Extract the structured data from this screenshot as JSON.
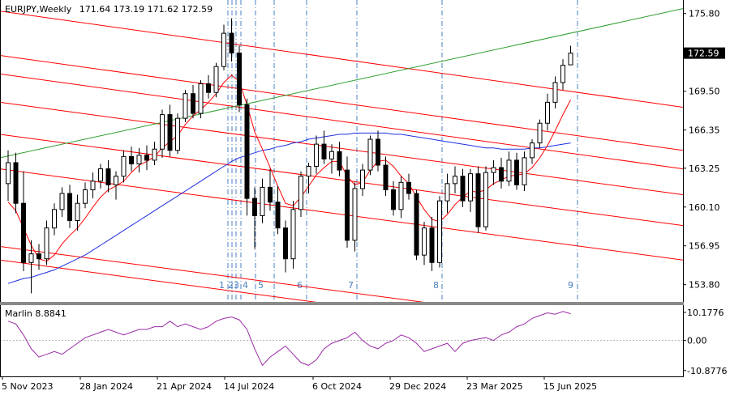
{
  "chart_data": {
    "type": "candlestick",
    "symbol_label": "EURJPY,Weekly",
    "ohlc_header": "171.64 173.19 171.62 172.59",
    "current_price": 172.59,
    "current_price_label": "172.59",
    "price_axis": {
      "range": [
        152.4,
        176.9
      ],
      "ticks": [
        175.8,
        172.65,
        169.5,
        166.35,
        163.25,
        160.1,
        156.95,
        153.8
      ],
      "tick_labels": [
        "175.80",
        "172.65",
        "169.50",
        "166.35",
        "163.25",
        "160.10",
        "156.95",
        "153.80"
      ]
    },
    "time_labels": [
      "5 Nov 2023",
      "28 Jan 2024",
      "21 Apr 2024",
      "14 Jul 2024",
      "6 Oct 2024",
      "29 Dec 2024",
      "23 Mar 2025",
      "15 Jun 2025"
    ],
    "wave_marks": [
      "1",
      "2",
      "3",
      "4",
      "5",
      "6",
      "7",
      "8",
      "9"
    ],
    "colors": {
      "bull": "#ffffff",
      "bear": "#000000",
      "channel": "#ff0000",
      "trendline": "#2e9e2e",
      "ma_fast": "#ff0000",
      "ma_slow": "#1f2fe0",
      "oscillator": "#9b2aa6",
      "cycle_lines": "#4a7fc0"
    },
    "candles": [
      [
        162.0,
        164.7,
        160.6,
        163.7
      ],
      [
        163.7,
        164.5,
        159.6,
        160.4
      ],
      [
        160.4,
        163.0,
        154.9,
        155.6
      ],
      [
        155.6,
        157.4,
        153.1,
        156.3
      ],
      [
        156.3,
        157.1,
        155.0,
        155.9
      ],
      [
        155.9,
        159.0,
        155.4,
        158.4
      ],
      [
        158.4,
        160.4,
        157.8,
        159.9
      ],
      [
        159.9,
        161.7,
        159.3,
        161.2
      ],
      [
        161.2,
        161.9,
        158.4,
        159.0
      ],
      [
        159.0,
        161.1,
        158.2,
        160.4
      ],
      [
        160.4,
        162.1,
        160.0,
        161.5
      ],
      [
        161.5,
        162.9,
        160.8,
        162.2
      ],
      [
        162.2,
        163.6,
        161.6,
        163.2
      ],
      [
        163.2,
        163.9,
        161.3,
        161.9
      ],
      [
        161.9,
        163.0,
        160.7,
        162.6
      ],
      [
        162.6,
        164.7,
        162.1,
        164.2
      ],
      [
        164.2,
        165.0,
        163.0,
        163.6
      ],
      [
        163.6,
        164.9,
        162.9,
        164.3
      ],
      [
        164.3,
        165.1,
        163.1,
        163.9
      ],
      [
        163.9,
        165.4,
        163.5,
        164.8
      ],
      [
        164.8,
        168.0,
        164.1,
        167.6
      ],
      [
        167.6,
        168.4,
        164.2,
        164.7
      ],
      [
        164.7,
        167.7,
        164.4,
        167.3
      ],
      [
        167.3,
        169.6,
        167.0,
        169.3
      ],
      [
        169.3,
        170.0,
        167.3,
        167.7
      ],
      [
        167.7,
        170.4,
        167.3,
        170.1
      ],
      [
        170.1,
        170.8,
        168.9,
        169.4
      ],
      [
        169.4,
        171.8,
        169.0,
        171.5
      ],
      [
        171.5,
        174.9,
        171.2,
        174.2
      ],
      [
        174.2,
        175.4,
        171.9,
        172.6
      ],
      [
        172.6,
        173.2,
        167.8,
        168.4
      ],
      [
        168.4,
        168.9,
        159.4,
        160.8
      ],
      [
        160.8,
        161.7,
        156.7,
        159.4
      ],
      [
        159.4,
        162.4,
        158.8,
        161.7
      ],
      [
        161.7,
        163.2,
        159.8,
        160.5
      ],
      [
        160.5,
        161.8,
        157.9,
        158.4
      ],
      [
        158.4,
        159.0,
        154.8,
        155.9
      ],
      [
        155.9,
        160.6,
        155.1,
        159.9
      ],
      [
        159.9,
        163.0,
        159.3,
        162.6
      ],
      [
        162.6,
        163.7,
        161.2,
        163.4
      ],
      [
        163.4,
        165.9,
        162.8,
        165.2
      ],
      [
        165.2,
        166.3,
        163.6,
        164.0
      ],
      [
        164.0,
        165.2,
        162.8,
        164.6
      ],
      [
        164.6,
        165.4,
        162.6,
        163.1
      ],
      [
        163.1,
        164.2,
        156.8,
        157.4
      ],
      [
        157.4,
        162.1,
        156.5,
        161.6
      ],
      [
        161.6,
        163.6,
        161.0,
        163.1
      ],
      [
        163.1,
        165.9,
        162.7,
        165.6
      ],
      [
        165.6,
        166.3,
        163.0,
        163.5
      ],
      [
        163.5,
        164.2,
        161.0,
        161.5
      ],
      [
        161.5,
        162.2,
        159.4,
        159.9
      ],
      [
        159.9,
        162.6,
        159.2,
        162.1
      ],
      [
        162.1,
        162.8,
        160.7,
        161.2
      ],
      [
        161.2,
        161.5,
        155.8,
        156.2
      ],
      [
        156.2,
        158.9,
        155.4,
        158.4
      ],
      [
        158.4,
        159.3,
        154.9,
        155.6
      ],
      [
        155.6,
        161.0,
        155.2,
        160.6
      ],
      [
        160.6,
        162.8,
        159.6,
        162.0
      ],
      [
        162.0,
        163.4,
        161.2,
        162.6
      ],
      [
        162.6,
        163.2,
        160.1,
        160.6
      ],
      [
        160.6,
        163.2,
        159.7,
        162.8
      ],
      [
        162.8,
        163.4,
        158.0,
        158.5
      ],
      [
        158.5,
        163.4,
        158.2,
        162.9
      ],
      [
        162.9,
        163.9,
        161.9,
        163.3
      ],
      [
        163.3,
        164.1,
        161.6,
        162.2
      ],
      [
        162.2,
        164.6,
        161.8,
        163.9
      ],
      [
        163.9,
        164.5,
        161.5,
        161.9
      ],
      [
        161.9,
        164.6,
        161.4,
        164.1
      ],
      [
        164.1,
        165.6,
        163.6,
        165.3
      ],
      [
        165.3,
        167.2,
        164.9,
        166.9
      ],
      [
        166.9,
        169.3,
        166.3,
        168.6
      ],
      [
        168.6,
        170.7,
        168.1,
        170.2
      ],
      [
        170.2,
        172.1,
        169.6,
        171.6
      ],
      [
        171.64,
        173.19,
        171.62,
        172.59
      ]
    ],
    "fast_ma": [
      160.5,
      159.8,
      158.4,
      157.0,
      155.9,
      155.7,
      156.2,
      157.1,
      157.8,
      158.4,
      159.2,
      160.1,
      160.9,
      161.5,
      161.8,
      162.2,
      162.9,
      163.5,
      163.8,
      164.2,
      164.9,
      165.4,
      165.9,
      166.8,
      167.5,
      168.0,
      168.6,
      169.3,
      170.2,
      170.8,
      170.3,
      168.4,
      166.2,
      164.8,
      163.3,
      161.8,
      160.4,
      160.2,
      160.9,
      161.8,
      162.7,
      163.3,
      163.8,
      163.8,
      162.6,
      161.9,
      162.1,
      163.1,
      163.8,
      163.9,
      163.4,
      162.6,
      162.0,
      160.9,
      159.9,
      159.1,
      158.9,
      159.5,
      160.3,
      160.9,
      161.4,
      161.3,
      161.5,
      162.0,
      162.3,
      162.6,
      162.7,
      162.8,
      163.3,
      164.1,
      165.1,
      166.3,
      167.6,
      168.8
    ],
    "slow_ma": [
      153.9,
      154.1,
      154.3,
      154.4,
      154.6,
      154.8,
      155.0,
      155.3,
      155.6,
      155.9,
      156.2,
      156.6,
      157.0,
      157.4,
      157.8,
      158.2,
      158.6,
      159.0,
      159.4,
      159.8,
      160.2,
      160.6,
      161.0,
      161.4,
      161.8,
      162.2,
      162.6,
      163.0,
      163.4,
      163.8,
      164.1,
      164.3,
      164.5,
      164.7,
      164.8,
      165.0,
      165.1,
      165.3,
      165.4,
      165.6,
      165.7,
      165.8,
      165.9,
      166.0,
      166.0,
      166.1,
      166.1,
      166.1,
      166.1,
      166.1,
      166.0,
      166.0,
      165.9,
      165.8,
      165.7,
      165.6,
      165.5,
      165.4,
      165.3,
      165.2,
      165.1,
      165.0,
      164.9,
      164.9,
      164.8,
      164.8,
      164.8,
      164.8,
      164.9,
      164.9,
      165.0,
      165.1,
      165.2,
      165.3
    ],
    "channel_lines": [
      [
        176.0,
        168.2
      ],
      [
        172.4,
        164.7
      ],
      [
        170.9,
        163.2
      ],
      [
        168.6,
        161.1
      ],
      [
        166.0,
        158.6
      ],
      [
        163.2,
        155.8
      ],
      [
        156.9,
        149.6
      ],
      [
        155.8,
        148.4
      ]
    ],
    "trendline": [
      164.1,
      176.2
    ],
    "oscillator": {
      "label": "Marlin 8.8841",
      "range": [
        -13.0,
        12.5
      ],
      "ticks": [
        10.1776,
        0.0,
        -10.8776
      ],
      "tick_labels": [
        "10.1776",
        "0.00",
        "-10.8776"
      ],
      "values": [
        7.0,
        6.0,
        2.0,
        -3.0,
        -6.0,
        -5.0,
        -4.0,
        -5.0,
        -3.0,
        -1.0,
        1.0,
        2.0,
        3.0,
        4.0,
        3.0,
        2.0,
        3.0,
        4.0,
        4.0,
        5.0,
        5.0,
        7.0,
        5.0,
        6.0,
        5.0,
        4.0,
        5.0,
        7.0,
        8.0,
        8.5,
        7.5,
        4.0,
        -3.0,
        -9.0,
        -6.0,
        -4.0,
        -2.0,
        -5.0,
        -8.0,
        -9.0,
        -7.0,
        -3.0,
        -1.0,
        0.0,
        1.0,
        3.0,
        0.0,
        -2.0,
        -3.0,
        -1.0,
        0.0,
        2.0,
        1.0,
        -1.0,
        -4.0,
        -3.0,
        -2.0,
        -1.0,
        -4.0,
        -1.0,
        0.0,
        0.5,
        1.0,
        0.0,
        2.0,
        3.0,
        5.0,
        6.0,
        8.0,
        9.0,
        10.0,
        9.5,
        10.5,
        9.7
      ]
    }
  }
}
